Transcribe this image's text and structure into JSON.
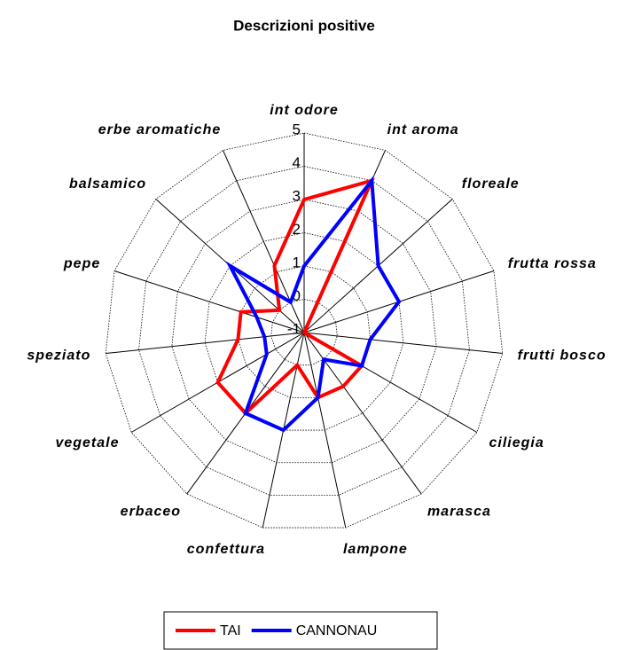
{
  "chart_data": {
    "type": "radar",
    "title": "Descrizioni positive",
    "categories": [
      "int odore",
      "int aroma",
      "floreale",
      "frutta rossa",
      "frutti bosco",
      "ciliegia",
      "marasca",
      "lampone",
      "confettura",
      "erbaceo",
      "vegetale",
      "speziato",
      "pepe",
      "balsamico",
      "erbe aromatiche"
    ],
    "series": [
      {
        "name": "TAI",
        "color": "#ff0000",
        "values": [
          3,
          4,
          -1,
          -1,
          -1,
          1,
          1,
          1,
          0,
          2,
          2,
          1,
          1,
          0,
          1.2
        ]
      },
      {
        "name": "CANNONAU",
        "color": "#0000ff",
        "values": [
          1,
          4,
          2,
          2,
          1,
          1,
          0,
          1,
          2,
          2,
          0.3,
          0.2,
          0.5,
          2,
          0
        ]
      }
    ],
    "ylim": [
      -1,
      5
    ],
    "yticks": [
      -1,
      0,
      1,
      2,
      3,
      4,
      5
    ],
    "grid": true,
    "legend": "bottom"
  }
}
